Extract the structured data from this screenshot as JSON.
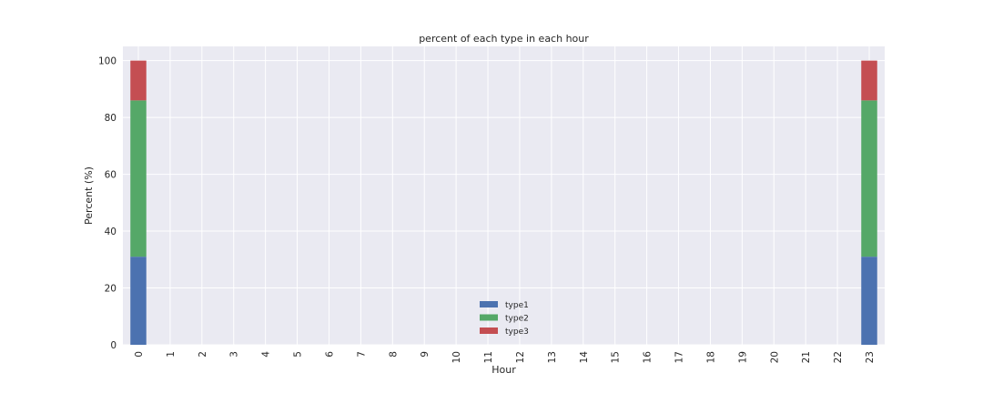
{
  "chart_data": {
    "type": "bar",
    "stacked": true,
    "title": "percent of each type in each hour",
    "xlabel": "Hour",
    "ylabel": "Percent (%)",
    "ylim": [
      0,
      105
    ],
    "yticks": [
      0,
      20,
      40,
      60,
      80,
      100
    ],
    "grid": true,
    "legend_position": "lower center",
    "categories": [
      "0",
      "1",
      "2",
      "3",
      "4",
      "5",
      "6",
      "7",
      "8",
      "9",
      "10",
      "11",
      "12",
      "13",
      "14",
      "15",
      "16",
      "17",
      "18",
      "19",
      "20",
      "21",
      "22",
      "23"
    ],
    "series": [
      {
        "name": "type1",
        "color": "#4c72b0",
        "values": [
          31,
          0,
          0,
          0,
          0,
          0,
          0,
          0,
          0,
          0,
          0,
          0,
          0,
          0,
          0,
          0,
          0,
          0,
          0,
          0,
          0,
          0,
          0,
          31
        ]
      },
      {
        "name": "type2",
        "color": "#55a868",
        "values": [
          55,
          0,
          0,
          0,
          0,
          0,
          0,
          0,
          0,
          0,
          0,
          0,
          0,
          0,
          0,
          0,
          0,
          0,
          0,
          0,
          0,
          0,
          0,
          55
        ]
      },
      {
        "name": "type3",
        "color": "#c44e52",
        "values": [
          14,
          0,
          0,
          0,
          0,
          0,
          0,
          0,
          0,
          0,
          0,
          0,
          0,
          0,
          0,
          0,
          0,
          0,
          0,
          0,
          0,
          0,
          0,
          14
        ]
      }
    ],
    "background_color": "#eaeaf2"
  }
}
